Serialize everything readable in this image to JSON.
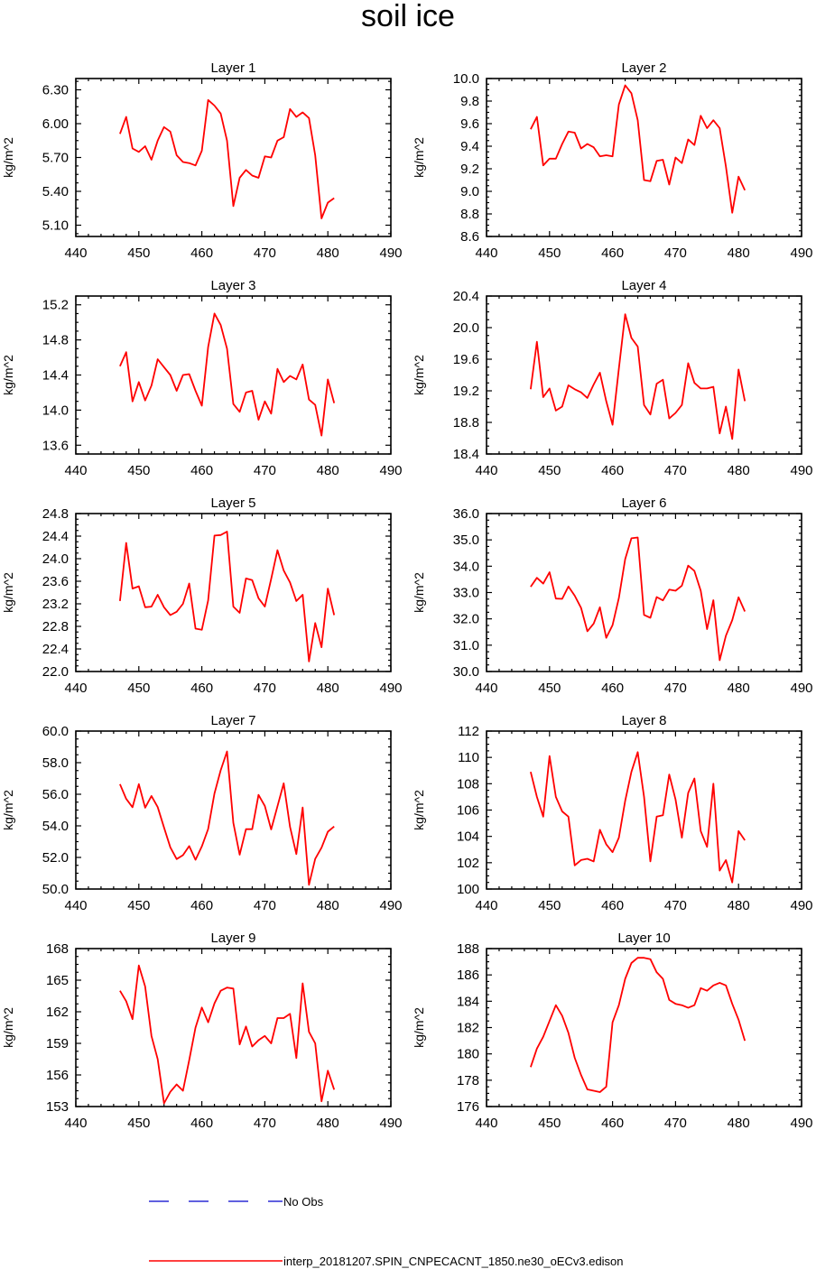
{
  "title": "soil ice",
  "colors": {
    "model_line": "#ff0000",
    "obs_line": "#0000cc",
    "axis": "#000000"
  },
  "legend": {
    "obs_label": "No Obs",
    "model_label": "interp_20181207.SPIN_CNPECACNT_1850.ne30_oECv3.edison"
  },
  "chart_data": [
    {
      "type": "line",
      "title": "Layer 1",
      "ylabel": "kg/m^2",
      "xlim": [
        440,
        490
      ],
      "xticks": [
        440,
        450,
        460,
        470,
        480,
        490
      ],
      "ylim": [
        5.0,
        6.4
      ],
      "yticks": [
        5.1,
        5.4,
        5.7,
        6.0,
        6.3
      ],
      "ytick_decimals": 2,
      "x_start": 447,
      "series": [
        {
          "values": [
            5.91,
            6.06,
            5.78,
            5.75,
            5.8,
            5.68,
            5.85,
            5.97,
            5.93,
            5.72,
            5.66,
            5.65,
            5.63,
            5.76,
            6.21,
            6.16,
            6.09,
            5.85,
            5.27,
            5.52,
            5.59,
            5.54,
            5.52,
            5.71,
            5.7,
            5.85,
            5.88,
            6.13,
            6.06,
            6.1,
            6.05,
            5.72,
            5.16,
            5.3,
            5.34
          ]
        }
      ]
    },
    {
      "type": "line",
      "title": "Layer 2",
      "ylabel": "kg/m^2",
      "xlim": [
        440,
        490
      ],
      "xticks": [
        440,
        450,
        460,
        470,
        480,
        490
      ],
      "ylim": [
        8.6,
        10.0
      ],
      "yticks": [
        8.6,
        8.8,
        9.0,
        9.2,
        9.4,
        9.6,
        9.8,
        10.0
      ],
      "ytick_decimals": 1,
      "x_start": 447,
      "series": [
        {
          "values": [
            9.55,
            9.66,
            9.23,
            9.29,
            9.29,
            9.42,
            9.53,
            9.52,
            9.38,
            9.42,
            9.39,
            9.31,
            9.32,
            9.31,
            9.77,
            9.94,
            9.87,
            9.63,
            9.1,
            9.09,
            9.27,
            9.28,
            9.06,
            9.3,
            9.25,
            9.46,
            9.41,
            9.67,
            9.56,
            9.63,
            9.56,
            9.22,
            8.81,
            9.13,
            9.01
          ]
        }
      ]
    },
    {
      "type": "line",
      "title": "Layer 3",
      "ylabel": "kg/m^2",
      "xlim": [
        440,
        490
      ],
      "xticks": [
        440,
        450,
        460,
        470,
        480,
        490
      ],
      "ylim": [
        13.5,
        15.3
      ],
      "yticks": [
        13.6,
        14.0,
        14.4,
        14.8,
        15.2
      ],
      "ytick_decimals": 1,
      "x_start": 447,
      "series": [
        {
          "values": [
            14.5,
            14.66,
            14.1,
            14.32,
            14.11,
            14.28,
            14.58,
            14.49,
            14.4,
            14.22,
            14.4,
            14.41,
            14.22,
            14.05,
            14.72,
            15.1,
            14.97,
            14.7,
            14.07,
            13.98,
            14.2,
            14.22,
            13.89,
            14.1,
            13.96,
            14.47,
            14.32,
            14.39,
            14.35,
            14.52,
            14.12,
            14.06,
            13.71,
            14.35,
            14.08
          ]
        }
      ]
    },
    {
      "type": "line",
      "title": "Layer 4",
      "ylabel": "kg/m^2",
      "xlim": [
        440,
        490
      ],
      "xticks": [
        440,
        450,
        460,
        470,
        480,
        490
      ],
      "ylim": [
        18.4,
        20.4
      ],
      "yticks": [
        18.4,
        18.8,
        19.2,
        19.6,
        20.0,
        20.4
      ],
      "ytick_decimals": 1,
      "x_start": 447,
      "series": [
        {
          "values": [
            19.22,
            19.82,
            19.12,
            19.23,
            18.95,
            19.0,
            19.27,
            19.22,
            19.18,
            19.11,
            19.28,
            19.43,
            19.07,
            18.77,
            19.48,
            20.17,
            19.87,
            19.76,
            19.02,
            18.9,
            19.29,
            19.34,
            18.85,
            18.92,
            19.02,
            19.55,
            19.3,
            19.23,
            19.23,
            19.25,
            18.66,
            19.0,
            18.59,
            19.47,
            19.07
          ]
        }
      ]
    },
    {
      "type": "line",
      "title": "Layer 5",
      "ylabel": "kg/m^2",
      "xlim": [
        440,
        490
      ],
      "xticks": [
        440,
        450,
        460,
        470,
        480,
        490
      ],
      "ylim": [
        22.0,
        24.8
      ],
      "yticks": [
        22.0,
        22.4,
        22.8,
        23.2,
        23.6,
        24.0,
        24.4,
        24.8
      ],
      "ytick_decimals": 1,
      "x_start": 447,
      "series": [
        {
          "values": [
            23.25,
            24.28,
            23.47,
            23.51,
            23.14,
            23.15,
            23.36,
            23.14,
            23.0,
            23.06,
            23.2,
            23.56,
            22.76,
            22.74,
            23.26,
            24.41,
            24.42,
            24.48,
            23.15,
            23.04,
            23.65,
            23.62,
            23.3,
            23.15,
            23.64,
            24.15,
            23.79,
            23.58,
            23.25,
            23.36,
            22.18,
            22.86,
            22.43,
            23.47,
            23.0
          ]
        }
      ]
    },
    {
      "type": "line",
      "title": "Layer 6",
      "ylabel": "kg/m^2",
      "xlim": [
        440,
        490
      ],
      "xticks": [
        440,
        450,
        460,
        470,
        480,
        490
      ],
      "ylim": [
        30.0,
        36.0
      ],
      "yticks": [
        30.0,
        31.0,
        32.0,
        33.0,
        34.0,
        35.0,
        36.0
      ],
      "ytick_decimals": 1,
      "x_start": 447,
      "series": [
        {
          "values": [
            33.22,
            33.56,
            33.34,
            33.77,
            32.77,
            32.76,
            33.23,
            32.88,
            32.42,
            31.53,
            31.82,
            32.44,
            31.28,
            31.76,
            32.79,
            34.27,
            35.06,
            35.09,
            32.15,
            32.04,
            32.83,
            32.7,
            33.11,
            33.07,
            33.26,
            34.02,
            33.82,
            33.07,
            31.61,
            32.71,
            30.43,
            31.36,
            31.95,
            32.82,
            32.28
          ]
        }
      ]
    },
    {
      "type": "line",
      "title": "Layer 7",
      "ylabel": "kg/m^2",
      "xlim": [
        440,
        490
      ],
      "xticks": [
        440,
        450,
        460,
        470,
        480,
        490
      ],
      "ylim": [
        50.0,
        60.0
      ],
      "yticks": [
        50.0,
        52.0,
        54.0,
        56.0,
        58.0,
        60.0
      ],
      "ytick_decimals": 1,
      "x_start": 447,
      "series": [
        {
          "values": [
            56.64,
            55.71,
            55.18,
            56.64,
            55.15,
            55.89,
            55.19,
            53.9,
            52.64,
            51.9,
            52.14,
            52.72,
            51.85,
            52.7,
            53.8,
            56.05,
            57.52,
            58.71,
            54.19,
            52.17,
            53.79,
            53.79,
            55.96,
            55.26,
            53.77,
            55.24,
            56.69,
            53.94,
            52.21,
            55.16,
            50.27,
            51.91,
            52.62,
            53.63,
            53.96
          ]
        }
      ]
    },
    {
      "type": "line",
      "title": "Layer 8",
      "ylabel": "kg/m^2",
      "xlim": [
        440,
        490
      ],
      "xticks": [
        440,
        450,
        460,
        470,
        480,
        490
      ],
      "ylim": [
        100,
        112
      ],
      "yticks": [
        100,
        102,
        104,
        106,
        108,
        110,
        112
      ],
      "ytick_decimals": 0,
      "x_start": 447,
      "series": [
        {
          "values": [
            108.9,
            107.0,
            105.5,
            110.1,
            107.0,
            105.9,
            105.5,
            101.8,
            102.2,
            102.3,
            102.1,
            104.5,
            103.4,
            102.8,
            103.9,
            106.7,
            108.9,
            110.4,
            107.0,
            102.1,
            105.5,
            105.6,
            108.7,
            106.8,
            103.9,
            107.3,
            108.4,
            104.4,
            103.2,
            108.0,
            101.4,
            102.2,
            100.5,
            104.4,
            103.7
          ]
        }
      ]
    },
    {
      "type": "line",
      "title": "Layer 9",
      "ylabel": "kg/m^2",
      "xlim": [
        440,
        490
      ],
      "xticks": [
        440,
        450,
        460,
        470,
        480,
        490
      ],
      "ylim": [
        153,
        168
      ],
      "yticks": [
        153,
        156,
        159,
        162,
        165,
        168
      ],
      "ytick_decimals": 0,
      "x_start": 447,
      "series": [
        {
          "values": [
            164.0,
            163.0,
            161.3,
            166.4,
            164.4,
            159.7,
            157.5,
            153.3,
            154.4,
            155.1,
            154.5,
            157.4,
            160.5,
            162.4,
            161.0,
            162.8,
            164.0,
            164.3,
            164.2,
            158.9,
            160.6,
            158.7,
            159.3,
            159.7,
            159.0,
            161.4,
            161.4,
            161.8,
            157.6,
            164.7,
            160.1,
            159.0,
            153.5,
            156.4,
            154.6
          ]
        }
      ]
    },
    {
      "type": "line",
      "title": "Layer 10",
      "ylabel": "kg/m^2",
      "xlim": [
        440,
        490
      ],
      "xticks": [
        440,
        450,
        460,
        470,
        480,
        490
      ],
      "ylim": [
        176,
        188
      ],
      "yticks": [
        176,
        178,
        180,
        182,
        184,
        186,
        188
      ],
      "ytick_decimals": 0,
      "x_start": 447,
      "series": [
        {
          "values": [
            179.0,
            180.4,
            181.3,
            182.5,
            183.7,
            182.9,
            181.6,
            179.7,
            178.4,
            177.3,
            177.2,
            177.1,
            177.5,
            182.4,
            183.7,
            185.7,
            186.9,
            187.3,
            187.3,
            187.2,
            186.2,
            185.7,
            184.1,
            183.8,
            183.7,
            183.5,
            183.7,
            185.0,
            184.8,
            185.2,
            185.4,
            185.2,
            183.8,
            182.6,
            181.0
          ]
        }
      ]
    }
  ]
}
